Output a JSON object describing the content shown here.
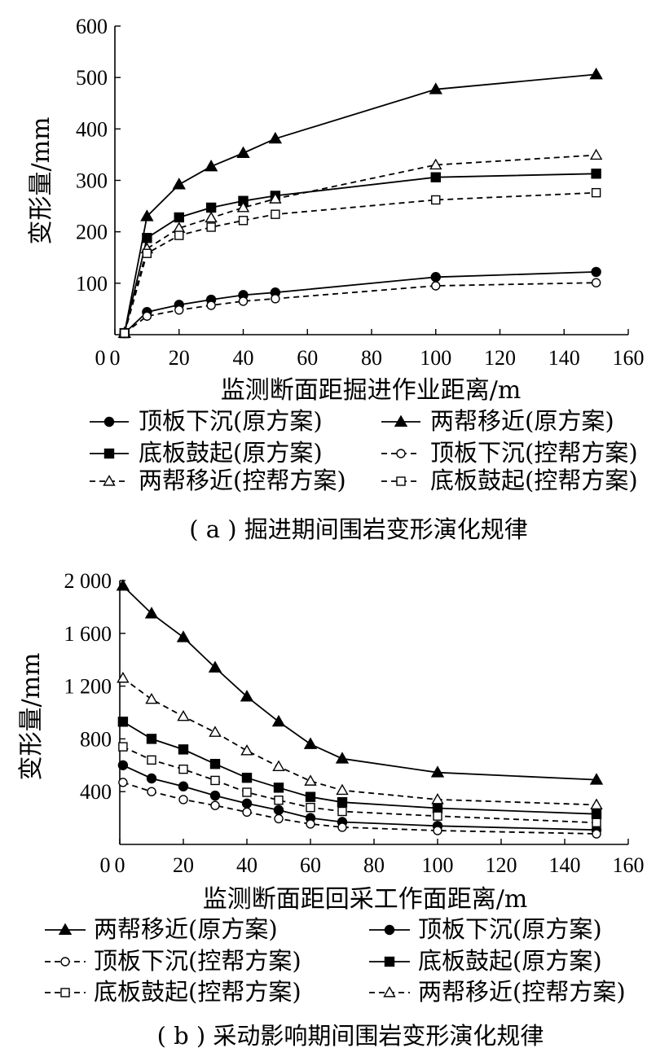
{
  "chart_data": [
    {
      "type": "line",
      "caption": "( a ) 掘进期间围岩变形演化规律",
      "xlabel": "监测断面距掘进作业距离/m",
      "ylabel": "变形量/mm",
      "xlim": [
        0,
        160
      ],
      "ylim": [
        0,
        600
      ],
      "xticks": [
        0,
        20,
        40,
        60,
        80,
        100,
        120,
        140,
        160
      ],
      "xtick_labels": [
        "0",
        "20",
        "40",
        "60",
        "80",
        "100",
        "120",
        "140",
        "160"
      ],
      "yticks": [
        100,
        200,
        300,
        400,
        500,
        600
      ],
      "ytick_labels": [
        "100",
        "200",
        "300",
        "400",
        "500",
        "600"
      ],
      "grid": false,
      "legend_position": "below",
      "series": [
        {
          "name": "顶板下沉(原方案)",
          "marker": "circle-filled",
          "dash": "solid",
          "x": [
            3,
            10,
            20,
            30,
            40,
            50,
            100,
            150
          ],
          "y": [
            3,
            44,
            58,
            68,
            77,
            82,
            112,
            122
          ]
        },
        {
          "name": "两帮移近(原方案)",
          "marker": "triangle-filled",
          "dash": "solid",
          "x": [
            3,
            10,
            20,
            30,
            40,
            50,
            100,
            150
          ],
          "y": [
            3,
            230,
            292,
            327,
            353,
            381,
            477,
            506
          ]
        },
        {
          "name": "底板鼓起(原方案)",
          "marker": "square-filled",
          "dash": "solid",
          "x": [
            3,
            10,
            20,
            30,
            40,
            50,
            100,
            150
          ],
          "y": [
            3,
            188,
            228,
            247,
            260,
            270,
            306,
            313
          ]
        },
        {
          "name": "顶板下沉(控帮方案)",
          "marker": "circle-open",
          "dash": "dashed",
          "x": [
            3,
            10,
            20,
            30,
            40,
            50,
            100,
            150
          ],
          "y": [
            3,
            36,
            48,
            57,
            65,
            70,
            95,
            101
          ]
        },
        {
          "name": "两帮移近(控帮方案)",
          "marker": "triangle-open",
          "dash": "dashed",
          "x": [
            3,
            10,
            20,
            30,
            40,
            50,
            100,
            150
          ],
          "y": [
            3,
            167,
            207,
            227,
            247,
            264,
            330,
            349
          ]
        },
        {
          "name": "底板鼓起(控帮方案)",
          "marker": "square-open",
          "dash": "dashed",
          "x": [
            3,
            10,
            20,
            30,
            40,
            50,
            100,
            150
          ],
          "y": [
            3,
            158,
            193,
            209,
            222,
            234,
            262,
            276
          ]
        }
      ]
    },
    {
      "type": "line",
      "caption": "( b ) 采动影响期间围岩变形演化规律",
      "xlabel": "监测断面距回采工作面距离/m",
      "ylabel": "变形量/mm",
      "xlim": [
        0,
        160
      ],
      "ylim": [
        0,
        2000
      ],
      "xticks": [
        0,
        20,
        40,
        60,
        80,
        100,
        120,
        140,
        160
      ],
      "xtick_labels": [
        "0",
        "20",
        "40",
        "60",
        "80",
        "100",
        "120",
        "140",
        "160"
      ],
      "yticks": [
        400,
        800,
        1200,
        1600,
        2000
      ],
      "ytick_labels": [
        "400",
        "800",
        "1 200",
        "1 600",
        "2 000"
      ],
      "grid": false,
      "legend_position": "below",
      "series": [
        {
          "name": "两帮移近(原方案)",
          "marker": "triangle-filled",
          "dash": "solid",
          "x": [
            1,
            10,
            20,
            30,
            40,
            50,
            60,
            70,
            100,
            150
          ],
          "y": [
            1960,
            1750,
            1570,
            1340,
            1120,
            930,
            760,
            650,
            545,
            490
          ]
        },
        {
          "name": "顶板下沉(原方案)",
          "marker": "circle-filled",
          "dash": "solid",
          "x": [
            1,
            10,
            20,
            30,
            40,
            50,
            60,
            70,
            100,
            150
          ],
          "y": [
            600,
            500,
            440,
            370,
            310,
            260,
            200,
            170,
            140,
            110
          ]
        },
        {
          "name": "顶板下沉(控帮方案)",
          "marker": "circle-open",
          "dash": "dashed",
          "x": [
            1,
            10,
            20,
            30,
            40,
            50,
            60,
            70,
            100,
            150
          ],
          "y": [
            470,
            400,
            340,
            295,
            245,
            195,
            155,
            130,
            105,
            80
          ]
        },
        {
          "name": "底板鼓起(原方案)",
          "marker": "square-filled",
          "dash": "solid",
          "x": [
            1,
            10,
            20,
            30,
            40,
            50,
            60,
            70,
            100,
            150
          ],
          "y": [
            930,
            800,
            720,
            610,
            505,
            430,
            360,
            320,
            275,
            230
          ]
        },
        {
          "name": "底板鼓起(控帮方案)",
          "marker": "square-open",
          "dash": "dashed",
          "x": [
            1,
            10,
            20,
            30,
            40,
            50,
            60,
            70,
            100,
            150
          ],
          "y": [
            740,
            640,
            570,
            485,
            395,
            335,
            280,
            250,
            215,
            165
          ]
        },
        {
          "name": "两帮移近(控帮方案)",
          "marker": "triangle-open",
          "dash": "dashed",
          "x": [
            1,
            10,
            20,
            30,
            40,
            50,
            60,
            70,
            100,
            150
          ],
          "y": [
            1260,
            1100,
            970,
            850,
            710,
            590,
            480,
            410,
            340,
            300
          ]
        }
      ]
    }
  ]
}
